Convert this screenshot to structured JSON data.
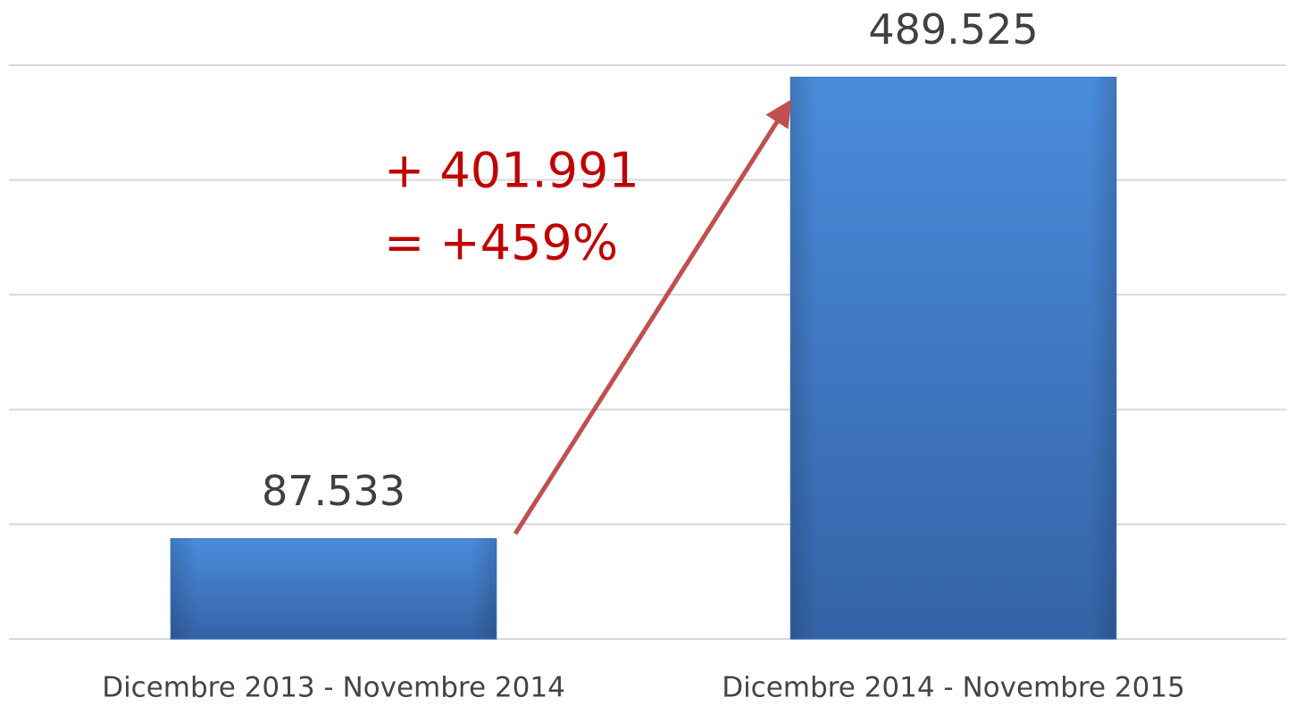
{
  "chart_data": {
    "type": "bar",
    "categories": [
      "Dicembre 2013 - Novembre 2014",
      "Dicembre 2014 - Novembre 2015"
    ],
    "values": [
      87533,
      489525
    ],
    "value_labels": [
      "87.533",
      "489.525"
    ],
    "color": "#3f7acb",
    "ylim": [
      0,
      500000
    ],
    "yticks": [
      0,
      100000,
      200000,
      300000,
      400000,
      500000
    ],
    "grid": true,
    "annotations": [
      "+ 401.991",
      "= +459%"
    ]
  }
}
